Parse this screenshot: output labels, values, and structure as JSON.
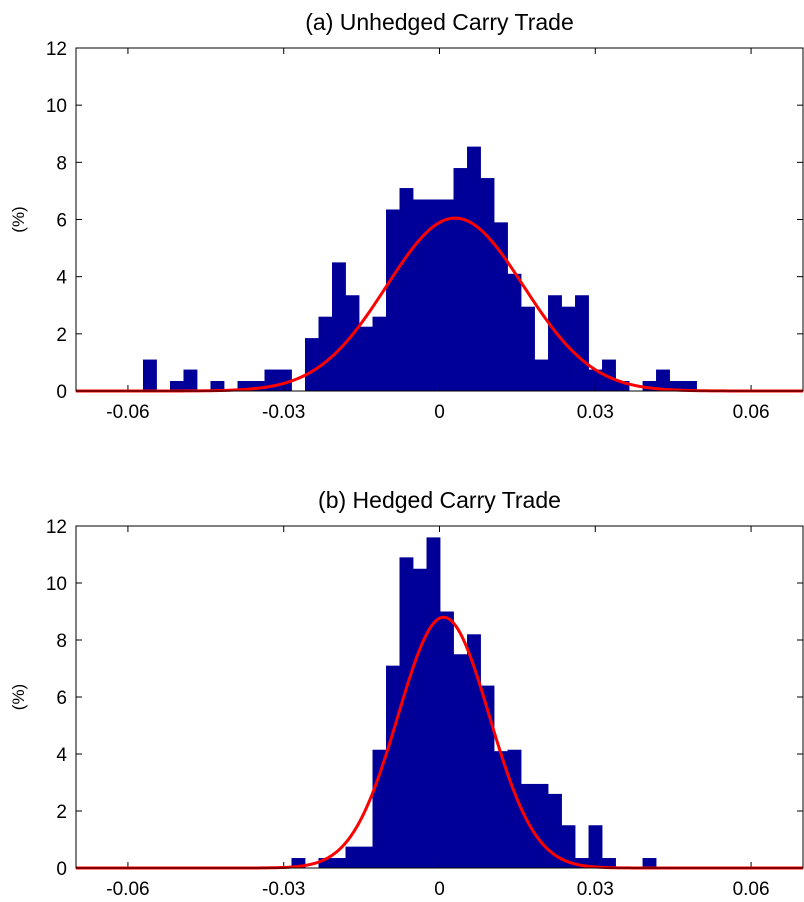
{
  "chart_data": [
    {
      "type": "bar",
      "title": "(a) Unhedged Carry Trade",
      "xlabel": "",
      "ylabel": "(%)",
      "xlim": [
        -0.07,
        0.07
      ],
      "ylim": [
        0,
        12
      ],
      "xticks": [
        -0.06,
        -0.03,
        0,
        0.03,
        0.06
      ],
      "xtick_labels": [
        "-0.06",
        "-0.03",
        "0",
        "0.03",
        "0.06"
      ],
      "yticks": [
        0,
        2,
        4,
        6,
        8,
        10,
        12
      ],
      "ytick_labels": [
        "0",
        "2",
        "4",
        "6",
        "8",
        "10",
        "12"
      ],
      "bin_width": 0.0026,
      "bar_color": "#000099",
      "curve_color": "#ff0000",
      "series": [
        {
          "kind": "histogram",
          "bin_centers": [
            -0.0558,
            -0.0532,
            -0.0506,
            -0.048,
            -0.0454,
            -0.0428,
            -0.0402,
            -0.0376,
            -0.035,
            -0.0324,
            -0.0298,
            -0.0272,
            -0.0246,
            -0.022,
            -0.0194,
            -0.0168,
            -0.0142,
            -0.0116,
            -0.009,
            -0.0064,
            -0.0038,
            -0.0012,
            0.0014,
            0.004,
            0.0066,
            0.0092,
            0.0118,
            0.0144,
            0.017,
            0.0196,
            0.0222,
            0.0248,
            0.0274,
            0.03,
            0.0326,
            0.0352,
            0.0378,
            0.0404,
            0.043,
            0.0456,
            0.0482
          ],
          "values": [
            1.1,
            0,
            0.35,
            0.75,
            0,
            0.35,
            0.05,
            0.35,
            0.35,
            0.75,
            0.75,
            0,
            1.85,
            2.6,
            4.5,
            3.35,
            2.25,
            2.6,
            6.35,
            7.1,
            6.7,
            6.7,
            6.7,
            7.8,
            8.55,
            7.45,
            5.9,
            4.1,
            2.95,
            1.1,
            3.35,
            2.95,
            3.35,
            0.75,
            1.1,
            0.35,
            0,
            0.35,
            0.75,
            0.35,
            0.35
          ]
        },
        {
          "kind": "normal_fit",
          "mean": 0.003,
          "std": 0.0132,
          "peak": 6.05
        }
      ]
    },
    {
      "type": "bar",
      "title": "(b) Hedged Carry Trade",
      "xlabel": "",
      "ylabel": "(%)",
      "xlim": [
        -0.07,
        0.07
      ],
      "ylim": [
        0,
        12
      ],
      "xticks": [
        -0.06,
        -0.03,
        0,
        0.03,
        0.06
      ],
      "xtick_labels": [
        "-0.06",
        "-0.03",
        "0",
        "0.03",
        "0.06"
      ],
      "yticks": [
        0,
        2,
        4,
        6,
        8,
        10,
        12
      ],
      "ytick_labels": [
        "0",
        "2",
        "4",
        "6",
        "8",
        "10",
        "12"
      ],
      "bin_width": 0.0026,
      "bar_color": "#000099",
      "curve_color": "#ff0000",
      "series": [
        {
          "kind": "histogram",
          "bin_centers": [
            -0.0272,
            -0.0246,
            -0.022,
            -0.0194,
            -0.0168,
            -0.0142,
            -0.0116,
            -0.009,
            -0.0064,
            -0.0038,
            -0.0012,
            0.0014,
            0.004,
            0.0066,
            0.0092,
            0.0118,
            0.0144,
            0.017,
            0.0196,
            0.0222,
            0.0248,
            0.0274,
            0.03,
            0.0326,
            0.0352,
            0.0378,
            0.0404
          ],
          "values": [
            0.35,
            0,
            0.35,
            0.35,
            0.75,
            0.75,
            4.15,
            7.1,
            10.9,
            10.5,
            11.6,
            9.0,
            7.5,
            8.2,
            6.4,
            4.1,
            4.15,
            2.95,
            2.95,
            2.6,
            1.5,
            0.35,
            1.5,
            0.35,
            0,
            0,
            0.35
          ]
        },
        {
          "kind": "normal_fit",
          "mean": 0.0008,
          "std": 0.0088,
          "peak": 8.8
        }
      ]
    }
  ]
}
